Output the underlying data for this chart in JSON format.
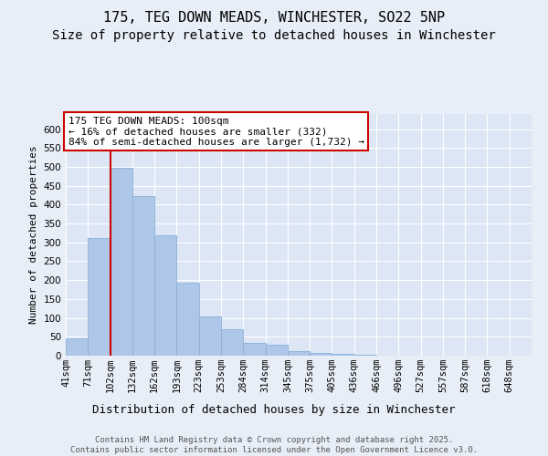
{
  "title_line1": "175, TEG DOWN MEADS, WINCHESTER, SO22 5NP",
  "title_line2": "Size of property relative to detached houses in Winchester",
  "xlabel": "Distribution of detached houses by size in Winchester",
  "ylabel": "Number of detached properties",
  "categories": [
    "41sqm",
    "71sqm",
    "102sqm",
    "132sqm",
    "162sqm",
    "193sqm",
    "223sqm",
    "253sqm",
    "284sqm",
    "314sqm",
    "345sqm",
    "375sqm",
    "405sqm",
    "436sqm",
    "466sqm",
    "496sqm",
    "527sqm",
    "557sqm",
    "587sqm",
    "618sqm",
    "648sqm"
  ],
  "bar_values": [
    45,
    312,
    497,
    422,
    318,
    193,
    104,
    69,
    35,
    30,
    12,
    8,
    4,
    2,
    1,
    1,
    1,
    1,
    1,
    1,
    1
  ],
  "bar_color": "#aec6e8",
  "bar_edge_color": "#8ab0d8",
  "vline_x_index": 2,
  "vline_color": "#cc0000",
  "annotation_text": "175 TEG DOWN MEADS: 100sqm\n← 16% of detached houses are smaller (332)\n84% of semi-detached houses are larger (1,732) →",
  "annotation_box_color": "#ffffff",
  "annotation_box_edge": "#cc0000",
  "ylim": [
    0,
    640
  ],
  "yticks": [
    0,
    50,
    100,
    150,
    200,
    250,
    300,
    350,
    400,
    450,
    500,
    550,
    600
  ],
  "bg_color": "#e8eef7",
  "plot_bg_color": "#dce6f5",
  "footer_text": "Contains HM Land Registry data © Crown copyright and database right 2025.\nContains public sector information licensed under the Open Government Licence v3.0.",
  "title_fontsize": 11,
  "subtitle_fontsize": 10,
  "ylabel_fontsize": 8,
  "xlabel_fontsize": 9,
  "tick_fontsize": 7.5,
  "annotation_fontsize": 8,
  "footer_fontsize": 6.5
}
